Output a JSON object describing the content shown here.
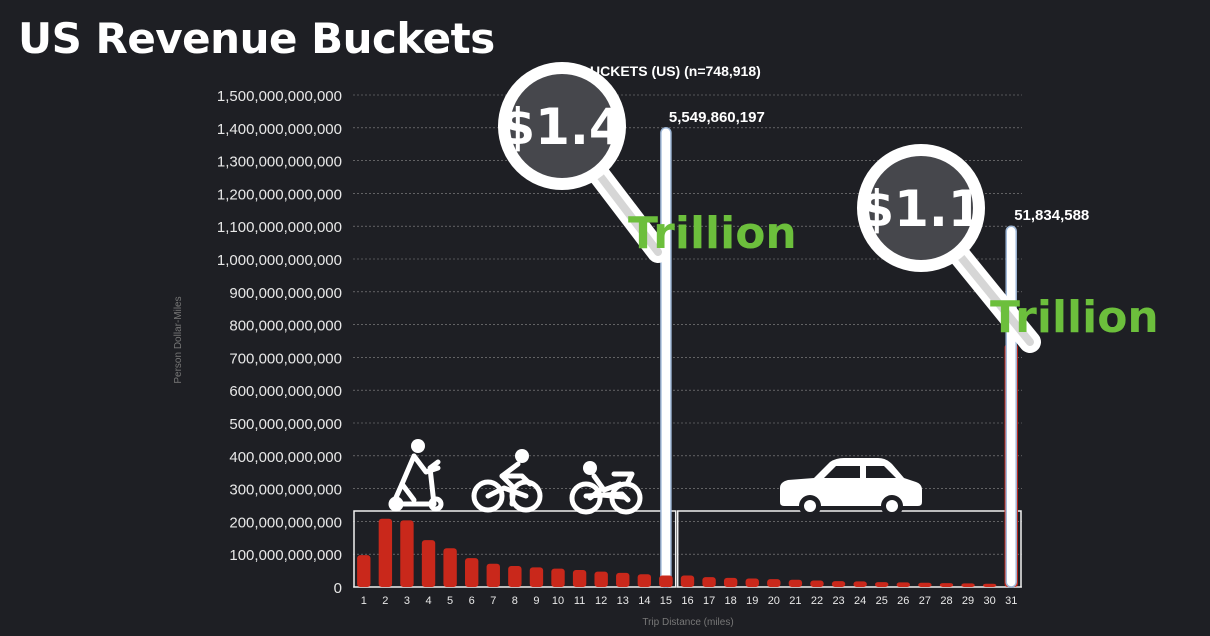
{
  "slide": {
    "title": "US Revenue Buckets"
  },
  "chart_data": {
    "type": "bar",
    "title": "UCKETS (US) (n=748,918)",
    "xlabel": "Trip Distance (miles)",
    "ylabel": "Person Dollar-Miles",
    "ylim": [
      0,
      1500000000000
    ],
    "y_ticks": [
      "0",
      "100,000,000,000",
      "200,000,000,000",
      "300,000,000,000",
      "400,000,000,000",
      "500,000,000,000",
      "600,000,000,000",
      "700,000,000,000",
      "800,000,000,000",
      "900,000,000,000",
      "1,000,000,000,000",
      "1,100,000,000,000",
      "1,200,000,000,000",
      "1,300,000,000,000",
      "1,400,000,000,000",
      "1,500,000,000,000"
    ],
    "grid": true,
    "categories": [
      "1",
      "2",
      "3",
      "4",
      "5",
      "6",
      "7",
      "8",
      "9",
      "10",
      "11",
      "12",
      "13",
      "14",
      "15",
      "16",
      "17",
      "18",
      "19",
      "20",
      "21",
      "22",
      "23",
      "24",
      "25",
      "26",
      "27",
      "28",
      "29",
      "30",
      "31"
    ],
    "values": [
      97000000000,
      208000000000,
      203000000000,
      143000000000,
      118000000000,
      88000000000,
      71000000000,
      64000000000,
      60000000000,
      56000000000,
      52000000000,
      47000000000,
      43000000000,
      39000000000,
      35000000000,
      35000000000,
      30000000000,
      28000000000,
      26000000000,
      24000000000,
      22000000000,
      20000000000,
      18000000000,
      17000000000,
      15000000000,
      14000000000,
      13000000000,
      12000000000,
      11000000000,
      10000000000,
      740000000000
    ],
    "bar_color": "#c9281b",
    "cumulative_bars": [
      {
        "category": "15",
        "value": 1400000000000,
        "label": "5,549,860,197",
        "color": "#ffffff"
      },
      {
        "category": "31",
        "value": 1100000000000,
        "label": "51,834,588",
        "color": "#ffffff"
      }
    ],
    "annotations": [
      {
        "amount": "$1.4",
        "unit": "Trillion"
      },
      {
        "amount": "$1.1",
        "unit": "Trillion"
      }
    ],
    "groups": [
      {
        "range": [
          "1",
          "15"
        ],
        "icons": [
          "scooter-icon",
          "bicycle-icon",
          "motorbike-icon"
        ]
      },
      {
        "range": [
          "16",
          "31"
        ],
        "icons": [
          "car-icon"
        ]
      }
    ],
    "accent_green": "#6cbf3c"
  }
}
